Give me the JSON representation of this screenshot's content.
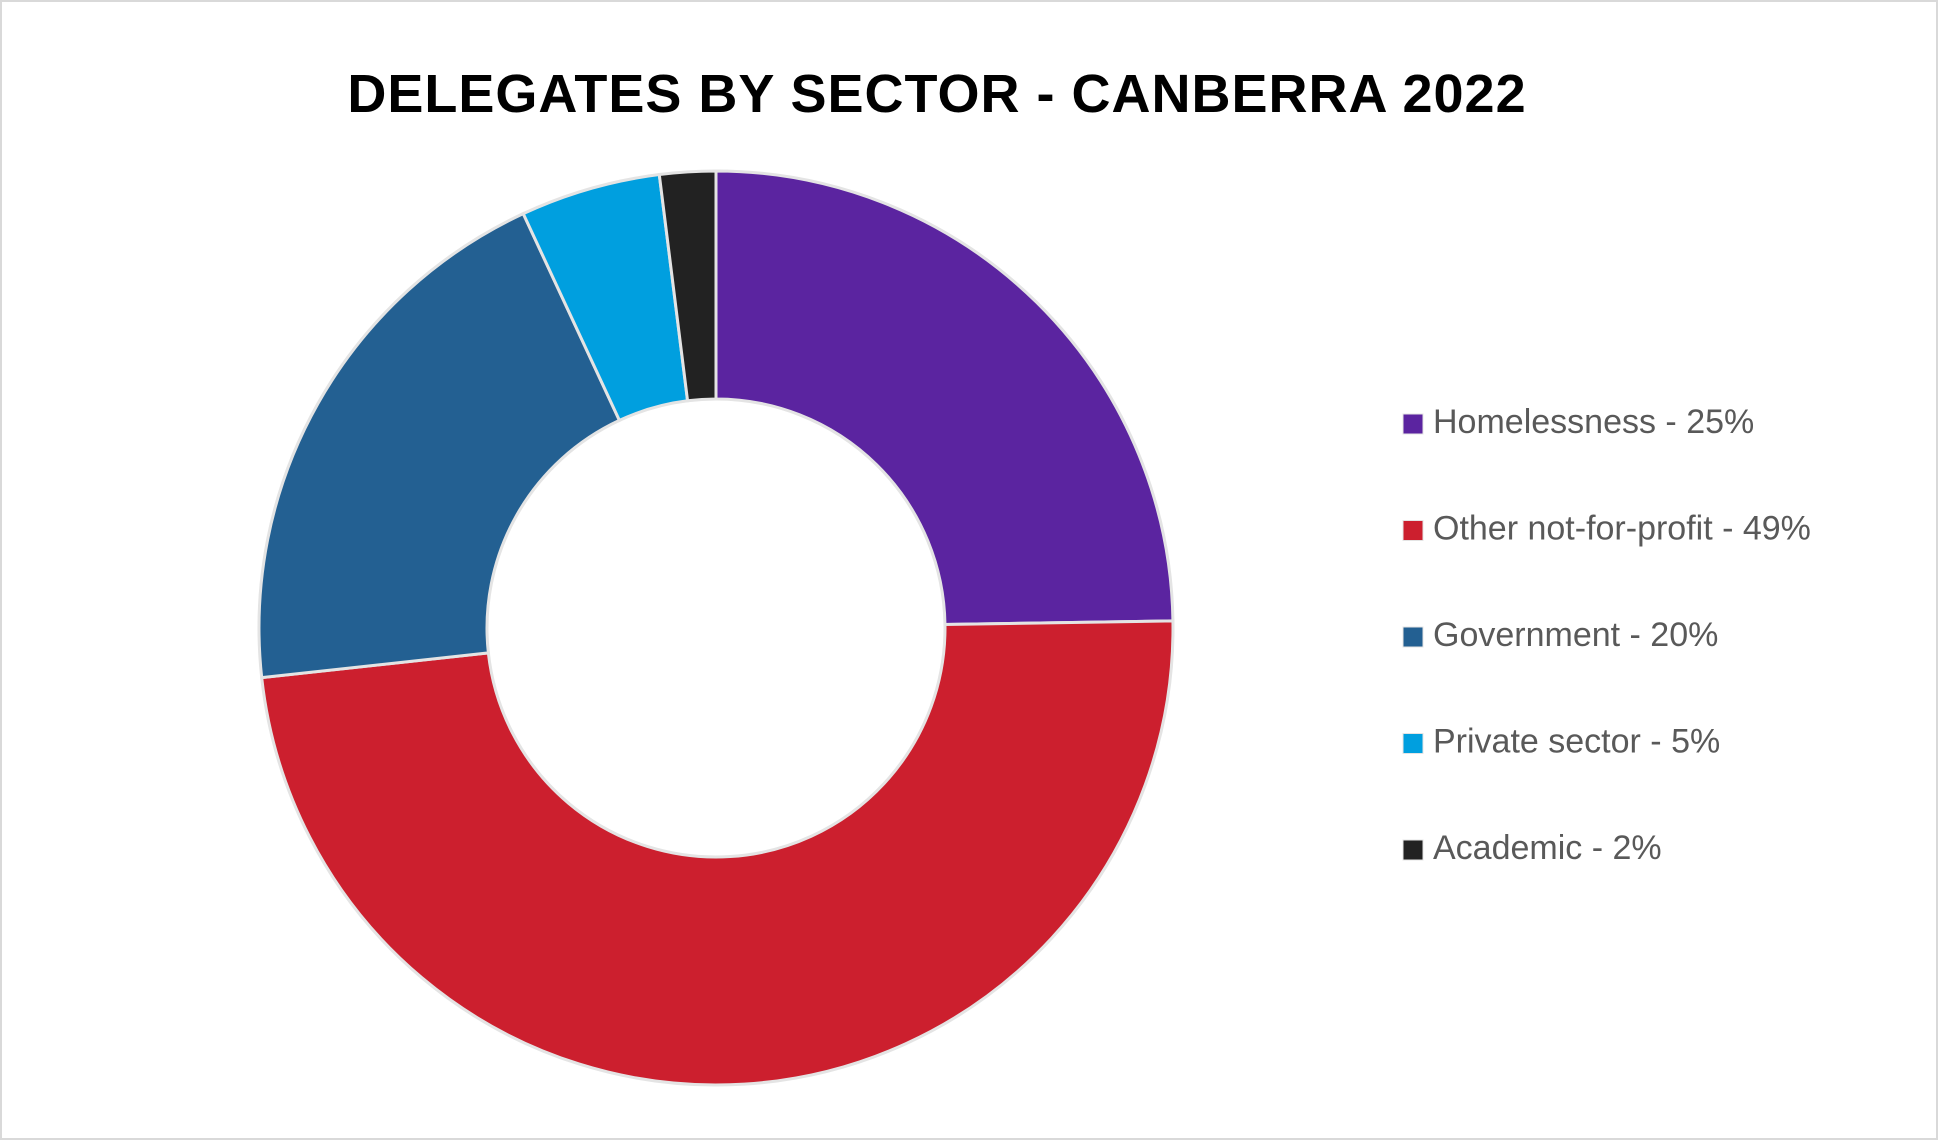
{
  "chart_data": {
    "type": "donut",
    "title": "DELEGATES BY SECTOR - CANBERRA 2022",
    "categories": [
      "Homelessness - 25%",
      "Other not-for-profit - 49%",
      "Government - 20%",
      "Private sector - 5%",
      "Academic - 2%"
    ],
    "values": [
      25,
      49,
      20,
      5,
      2
    ],
    "colors": [
      "#5b24a0",
      "#cc1f2e",
      "#236092",
      "#009fdf",
      "#222222"
    ],
    "legend": "right"
  }
}
